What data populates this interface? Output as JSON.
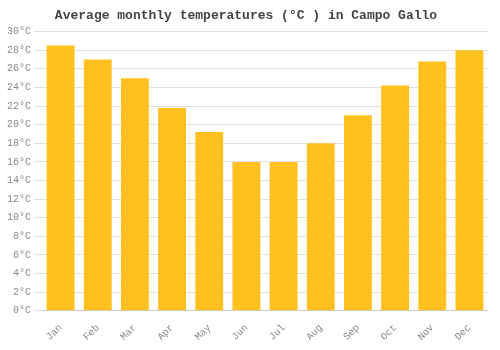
{
  "chart_data": {
    "type": "bar",
    "title": "Average monthly temperatures (°C ) in Campo Gallo",
    "categories": [
      "Jan",
      "Feb",
      "Mar",
      "Apr",
      "May",
      "Jun",
      "Jul",
      "Aug",
      "Sep",
      "Oct",
      "Nov",
      "Dec"
    ],
    "values": [
      28.5,
      27.0,
      25.0,
      21.8,
      19.2,
      16.0,
      16.0,
      18.0,
      21.0,
      24.2,
      26.8,
      28.0
    ],
    "color": "#FFC020",
    "ylim": [
      0,
      30
    ],
    "yticks": [
      {
        "value": 0,
        "label": "0°C"
      },
      {
        "value": 2,
        "label": "2°C"
      },
      {
        "value": 4,
        "label": "4°C"
      },
      {
        "value": 6,
        "label": "6°C"
      },
      {
        "value": 8,
        "label": "8°C"
      },
      {
        "value": 10,
        "label": "10°C"
      },
      {
        "value": 12,
        "label": "12°C"
      },
      {
        "value": 14,
        "label": "14°C"
      },
      {
        "value": 16,
        "label": "16°C"
      },
      {
        "value": 18,
        "label": "18°C"
      },
      {
        "value": 20,
        "label": "20°C"
      },
      {
        "value": 22,
        "label": "22°C"
      },
      {
        "value": 24,
        "label": "24°C"
      },
      {
        "value": 26,
        "label": "26°C"
      },
      {
        "value": 28,
        "label": "28°C"
      },
      {
        "value": 30,
        "label": "30°C"
      }
    ],
    "grid": true
  }
}
